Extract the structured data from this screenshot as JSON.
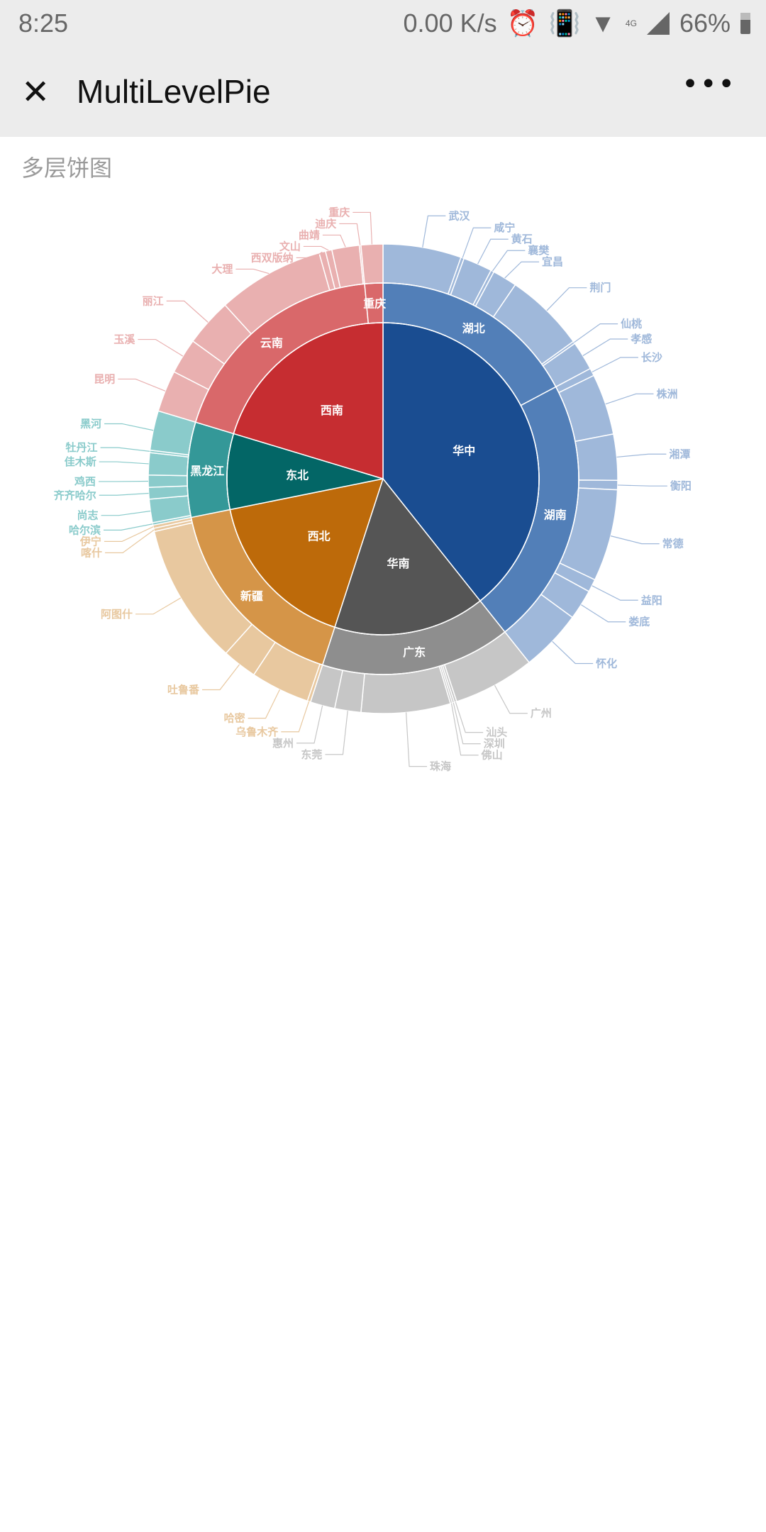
{
  "status_bar": {
    "time": "8:25",
    "net_speed": "0.00 K/s",
    "battery": "66%",
    "net_type": "4G"
  },
  "toolbar": {
    "close_icon": "close-icon",
    "title": "MultiLevelPie",
    "more_icon": "more-icon",
    "more_label": "•••"
  },
  "subtitle": "多层饼图",
  "chart_data": {
    "type": "pie",
    "subtype": "multi-level",
    "title": "多层饼图",
    "start_angle_deg": 0,
    "direction": "clockwise",
    "regions": [
      {
        "name": "华中",
        "colors": [
          "#1a4d91",
          "#527fb8",
          "#9fb8da"
        ],
        "provinces": [
          {
            "name": "湖北",
            "cities": [
              {
                "name": "武汉",
                "value": 19.4
              },
              {
                "name": "咸宁",
                "value": 0.8
              },
              {
                "name": "黄石",
                "value": 7.2
              },
              {
                "name": "襄樊",
                "value": 0.8
              },
              {
                "name": "宜昌",
                "value": 6.1
              },
              {
                "name": "荆门",
                "value": 19.9
              },
              {
                "name": "仙桃",
                "value": 0.6
              },
              {
                "name": "孝感",
                "value": 7.2
              }
            ]
          },
          {
            "name": "湖南",
            "cities": [
              {
                "name": "长沙",
                "value": 1.9
              },
              {
                "name": "株洲",
                "value": 15.1
              },
              {
                "name": "湘潭",
                "value": 11.4
              },
              {
                "name": "衡阳",
                "value": 2.3
              },
              {
                "name": "常德",
                "value": 22.8
              },
              {
                "name": "益阳",
                "value": 3.2
              },
              {
                "name": "娄底",
                "value": 7.5
              },
              {
                "name": "怀化",
                "value": 15.3
              }
            ]
          }
        ]
      },
      {
        "name": "华南",
        "colors": [
          "#555555",
          "#8e8e8e",
          "#c6c6c6"
        ],
        "provinces": [
          {
            "name": "广东",
            "cities": [
              {
                "name": "广州",
                "value": 20.2
              },
              {
                "name": "汕头",
                "value": 0.6
              },
              {
                "name": "深圳",
                "value": 0.5
              },
              {
                "name": "佛山",
                "value": 0.5
              },
              {
                "name": "珠海",
                "value": 22.1
              },
              {
                "name": "东莞",
                "value": 6.5
              },
              {
                "name": "惠州",
                "value": 6.1
              }
            ]
          }
        ]
      },
      {
        "name": "西北",
        "colors": [
          "#bd6a0a",
          "#d59548",
          "#e8c89f"
        ],
        "provinces": [
          {
            "name": "新疆",
            "cities": [
              {
                "name": "乌鲁木齐",
                "value": 0.8
              },
              {
                "name": "哈密",
                "value": 14.6
              },
              {
                "name": "吐鲁番",
                "value": 8.6
              },
              {
                "name": "阿图什",
                "value": 35.0
              },
              {
                "name": "喀什",
                "value": 0.8
              },
              {
                "name": "伊宁",
                "value": 0.8
              }
            ]
          }
        ]
      },
      {
        "name": "东北",
        "colors": [
          "#036666",
          "#349898",
          "#8acbcb"
        ],
        "provinces": [
          {
            "name": "黑龙江",
            "cities": [
              {
                "name": "哈尔滨",
                "value": 0.6
              },
              {
                "name": "尚志",
                "value": 5.8
              },
              {
                "name": "齐齐哈尔",
                "value": 2.9
              },
              {
                "name": "鸡西",
                "value": 3.0
              },
              {
                "name": "佳木斯",
                "value": 5.5
              },
              {
                "name": "牡丹江",
                "value": 0.6
              },
              {
                "name": "黑河",
                "value": 9.8
              }
            ]
          }
        ]
      },
      {
        "name": "西南",
        "colors": [
          "#c62d31",
          "#d9686a",
          "#e9b0b0"
        ],
        "provinces": [
          {
            "name": "云南",
            "cities": [
              {
                "name": "昆明",
                "value": 10.3
              },
              {
                "name": "玉溪",
                "value": 8.8
              },
              {
                "name": "丽江",
                "value": 11.8
              },
              {
                "name": "大理",
                "value": 26.5
              },
              {
                "name": "西双版纳",
                "value": 1.6
              },
              {
                "name": "文山",
                "value": 1.6
              },
              {
                "name": "曲靖",
                "value": 6.8
              },
              {
                "name": "迪庆",
                "value": 0.4
              }
            ]
          },
          {
            "name": "重庆",
            "cities": [
              {
                "name": "重庆",
                "value": 5.4
              }
            ]
          }
        ]
      }
    ]
  }
}
